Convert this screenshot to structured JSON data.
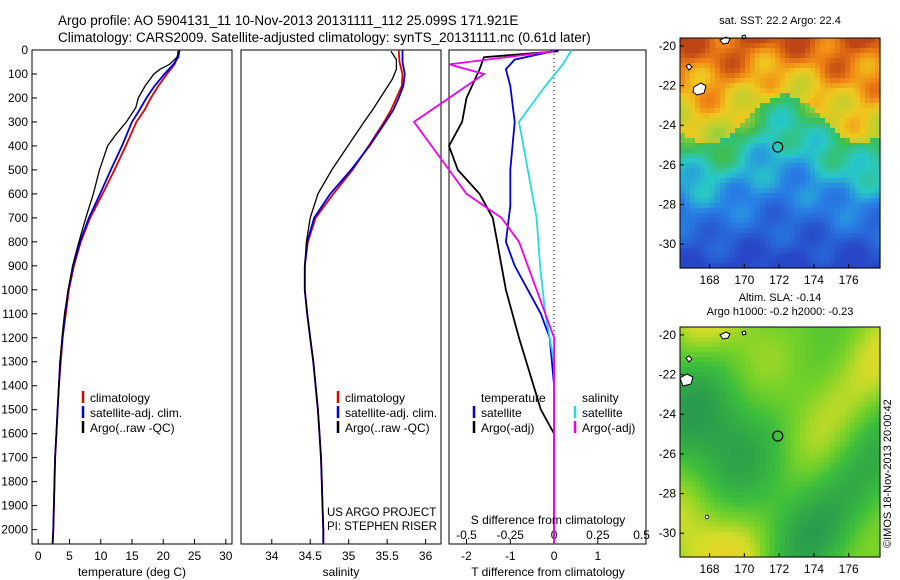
{
  "title_line1": "Argo profile: AO 5904131_11 10-Nov-2013 20131111_112 25.099S 171.921E",
  "title_line2": "Climatology: CARS2009. Satellite-adjusted climatology: synTS_20131111.nc (0.61d later)",
  "colors": {
    "climatology": "#e00000",
    "satellite": "#0000dd",
    "argo": "#000000",
    "salinity_satellite": "#22dddd",
    "salinity_argo": "#ee00ee"
  },
  "chart_data": [
    {
      "type": "line",
      "id": "temperature",
      "xlabel": "temperature (deg C)",
      "ylabel": "",
      "xlim": [
        -1,
        31
      ],
      "ylim": [
        2060,
        0
      ],
      "xticks": [
        0,
        5,
        10,
        15,
        20,
        25,
        30
      ],
      "yticks": [
        0,
        100,
        200,
        300,
        400,
        500,
        600,
        700,
        800,
        900,
        1000,
        1100,
        1200,
        1300,
        1400,
        1500,
        1600,
        1700,
        1800,
        1900,
        2000
      ],
      "legend": [
        "climatology",
        "satellite-adj. clim.",
        "Argo(..raw -QC)"
      ],
      "series": [
        {
          "name": "climatology",
          "points": [
            [
              22.4,
              0
            ],
            [
              22.3,
              30
            ],
            [
              21.8,
              60
            ],
            [
              20.6,
              100
            ],
            [
              19.2,
              150
            ],
            [
              18.0,
              200
            ],
            [
              17.0,
              250
            ],
            [
              15.7,
              300
            ],
            [
              14.0,
              400
            ],
            [
              12.2,
              500
            ],
            [
              10.3,
              600
            ],
            [
              8.3,
              700
            ],
            [
              6.8,
              800
            ],
            [
              5.7,
              900
            ],
            [
              4.9,
              1000
            ],
            [
              4.4,
              1100
            ],
            [
              3.9,
              1200
            ],
            [
              3.6,
              1300
            ],
            [
              3.3,
              1400
            ],
            [
              3.1,
              1500
            ],
            [
              2.9,
              1600
            ],
            [
              2.7,
              1700
            ],
            [
              2.6,
              1800
            ],
            [
              2.5,
              1900
            ],
            [
              2.4,
              2000
            ],
            [
              2.3,
              2060
            ]
          ]
        },
        {
          "name": "satellite-adj. clim.",
          "points": [
            [
              22.6,
              0
            ],
            [
              22.4,
              30
            ],
            [
              21.6,
              60
            ],
            [
              20.2,
              100
            ],
            [
              18.6,
              150
            ],
            [
              17.3,
              200
            ],
            [
              16.2,
              250
            ],
            [
              15.0,
              300
            ],
            [
              13.4,
              400
            ],
            [
              11.6,
              500
            ],
            [
              9.9,
              600
            ],
            [
              8.1,
              700
            ],
            [
              6.7,
              800
            ],
            [
              5.6,
              900
            ],
            [
              4.8,
              1000
            ],
            [
              4.3,
              1100
            ],
            [
              3.9,
              1200
            ],
            [
              3.5,
              1300
            ],
            [
              3.3,
              1400
            ],
            [
              3.1,
              1500
            ],
            [
              2.9,
              1600
            ],
            [
              2.7,
              1700
            ],
            [
              2.6,
              1800
            ],
            [
              2.5,
              1900
            ],
            [
              2.4,
              2000
            ],
            [
              2.3,
              2060
            ]
          ]
        },
        {
          "name": "Argo(..raw -QC)",
          "points": [
            [
              22.5,
              5
            ],
            [
              22.2,
              30
            ],
            [
              21.0,
              60
            ],
            [
              19.5,
              80
            ],
            [
              18.5,
              100
            ],
            [
              17.1,
              150
            ],
            [
              16.0,
              200
            ],
            [
              15.6,
              240
            ],
            [
              14.1,
              300
            ],
            [
              12.5,
              350
            ],
            [
              11.1,
              400
            ],
            [
              9.8,
              500
            ],
            [
              8.8,
              600
            ],
            [
              7.6,
              700
            ],
            [
              6.5,
              800
            ],
            [
              5.5,
              900
            ],
            [
              4.8,
              1000
            ],
            [
              4.2,
              1100
            ],
            [
              3.8,
              1200
            ],
            [
              3.5,
              1300
            ],
            [
              3.3,
              1400
            ],
            [
              3.1,
              1500
            ],
            [
              2.9,
              1600
            ],
            [
              2.7,
              1700
            ],
            [
              2.6,
              1800
            ],
            [
              2.5,
              1900
            ],
            [
              2.4,
              2000
            ],
            [
              2.3,
              2060
            ]
          ]
        }
      ]
    },
    {
      "type": "line",
      "id": "salinity",
      "xlabel": "salinity",
      "ylabel": "",
      "xlim": [
        33.6,
        36.2
      ],
      "ylim": [
        2060,
        0
      ],
      "xticks": [
        34,
        34.5,
        35,
        35.5,
        36
      ],
      "legend": [
        "climatology",
        "satellite-adj. clim.",
        "Argo(..raw -QC)"
      ],
      "series": [
        {
          "name": "climatology",
          "points": [
            [
              35.65,
              0
            ],
            [
              35.66,
              50
            ],
            [
              35.7,
              100
            ],
            [
              35.69,
              150
            ],
            [
              35.62,
              200
            ],
            [
              35.55,
              250
            ],
            [
              35.46,
              300
            ],
            [
              35.26,
              400
            ],
            [
              35.05,
              500
            ],
            [
              34.8,
              600
            ],
            [
              34.57,
              700
            ],
            [
              34.47,
              800
            ],
            [
              34.43,
              900
            ],
            [
              34.43,
              1000
            ],
            [
              34.46,
              1100
            ],
            [
              34.5,
              1200
            ],
            [
              34.54,
              1300
            ],
            [
              34.57,
              1400
            ],
            [
              34.6,
              1500
            ],
            [
              34.62,
              1600
            ],
            [
              34.64,
              1700
            ],
            [
              34.65,
              1800
            ],
            [
              34.66,
              1900
            ],
            [
              34.67,
              2000
            ],
            [
              34.67,
              2060
            ]
          ]
        },
        {
          "name": "satellite-adj. clim.",
          "points": [
            [
              35.7,
              0
            ],
            [
              35.7,
              50
            ],
            [
              35.73,
              100
            ],
            [
              35.71,
              150
            ],
            [
              35.65,
              200
            ],
            [
              35.58,
              250
            ],
            [
              35.48,
              300
            ],
            [
              35.27,
              400
            ],
            [
              35.03,
              500
            ],
            [
              34.76,
              600
            ],
            [
              34.55,
              700
            ],
            [
              34.46,
              800
            ],
            [
              34.43,
              900
            ],
            [
              34.43,
              1000
            ],
            [
              34.46,
              1100
            ],
            [
              34.5,
              1200
            ],
            [
              34.54,
              1300
            ],
            [
              34.57,
              1400
            ],
            [
              34.6,
              1500
            ],
            [
              34.62,
              1600
            ],
            [
              34.64,
              1700
            ],
            [
              34.65,
              1800
            ],
            [
              34.66,
              1900
            ],
            [
              34.67,
              2000
            ],
            [
              34.67,
              2060
            ]
          ]
        },
        {
          "name": "Argo(..raw -QC)",
          "points": [
            [
              35.55,
              5
            ],
            [
              35.62,
              40
            ],
            [
              35.62,
              80
            ],
            [
              35.57,
              120
            ],
            [
              35.49,
              160
            ],
            [
              35.41,
              200
            ],
            [
              35.31,
              250
            ],
            [
              35.2,
              300
            ],
            [
              34.99,
              400
            ],
            [
              34.78,
              500
            ],
            [
              34.6,
              600
            ],
            [
              34.5,
              700
            ],
            [
              34.45,
              800
            ],
            [
              34.43,
              900
            ],
            [
              34.43,
              1000
            ],
            [
              34.46,
              1100
            ],
            [
              34.5,
              1200
            ],
            [
              34.54,
              1300
            ],
            [
              34.57,
              1400
            ],
            [
              34.6,
              1500
            ],
            [
              34.62,
              1600
            ],
            [
              34.64,
              1700
            ],
            [
              34.65,
              1800
            ],
            [
              34.66,
              1900
            ],
            [
              34.67,
              2000
            ],
            [
              34.67,
              2060
            ]
          ]
        }
      ]
    },
    {
      "type": "line",
      "id": "difference",
      "xlabel_bottom": "T difference from climatology",
      "xlabel_top": "S difference from climatology",
      "xlim": [
        -2.4,
        2.1
      ],
      "ylim": [
        2060,
        0
      ],
      "xticks_T": [
        -2,
        -1,
        0,
        1
      ],
      "xticks_S": [
        "-0.5",
        "-0.25",
        "0",
        "0.25",
        "0.5"
      ],
      "xticks_S_values": [
        -0.5,
        -0.25,
        0,
        0.25,
        0.5
      ],
      "legend_temperature_title": "temperature",
      "legend_salinity_title": "salinity",
      "legend_temperature": [
        "satellite",
        "Argo(-adj)"
      ],
      "legend_salinity": [
        "satellite",
        "Argo(-adj)"
      ],
      "series": [
        {
          "name": "T satellite",
          "points": [
            [
              0.1,
              0
            ],
            [
              -0.9,
              40
            ],
            [
              -1.1,
              80
            ],
            [
              -1.0,
              150
            ],
            [
              -0.9,
              300
            ],
            [
              -1.0,
              500
            ],
            [
              -1.0,
              650
            ],
            [
              -1.1,
              800
            ],
            [
              -0.9,
              900
            ],
            [
              -0.6,
              1000
            ],
            [
              -0.3,
              1100
            ],
            [
              -0.1,
              1200
            ],
            [
              0,
              1400
            ],
            [
              0,
              2060
            ]
          ]
        },
        {
          "name": "T Argo(-adj)",
          "points": [
            [
              0.1,
              5
            ],
            [
              -1.6,
              30
            ],
            [
              -1.7,
              80
            ],
            [
              -2.0,
              200
            ],
            [
              -2.1,
              300
            ],
            [
              -2.4,
              400
            ],
            [
              -2.2,
              500
            ],
            [
              -1.7,
              600
            ],
            [
              -1.4,
              700
            ],
            [
              -1.3,
              800
            ],
            [
              -1.2,
              900
            ],
            [
              -1.1,
              1000
            ],
            [
              -0.8,
              1200
            ],
            [
              -0.3,
              1500
            ],
            [
              0,
              1600
            ],
            [
              0,
              2060
            ]
          ]
        },
        {
          "name": "S satellite",
          "points": [
            [
              0.1,
              0
            ],
            [
              0.05,
              60
            ],
            [
              -0.05,
              150
            ],
            [
              -0.2,
              300
            ],
            [
              -0.15,
              500
            ],
            [
              -0.1,
              700
            ],
            [
              -0.08,
              900
            ],
            [
              -0.05,
              1100
            ],
            [
              0,
              1300
            ],
            [
              0,
              2060
            ]
          ]
        },
        {
          "name": "S Argo(-adj)",
          "points": [
            [
              0.0,
              5
            ],
            [
              -0.6,
              60
            ],
            [
              -0.4,
              100
            ],
            [
              -0.6,
              200
            ],
            [
              -0.8,
              300
            ],
            [
              -0.7,
              400
            ],
            [
              -0.5,
              600
            ],
            [
              -0.3,
              700
            ],
            [
              -0.2,
              800
            ],
            [
              -0.1,
              1000
            ],
            [
              0,
              1200
            ],
            [
              0,
              2060
            ]
          ]
        }
      ]
    },
    {
      "type": "heatmap",
      "id": "sst-map",
      "title": "sat. SST: 22.2  Argo: 22.4",
      "xticks": [
        168,
        170,
        172,
        174,
        176
      ],
      "yticks": [
        -20,
        -22,
        -24,
        -26,
        -28,
        -30
      ],
      "xlim": [
        166.3,
        177.8
      ],
      "ylim": [
        -31.2,
        -19.6
      ],
      "argo_location": [
        171.92,
        -25.1
      ]
    },
    {
      "type": "heatmap",
      "id": "sla-map",
      "title_line1": "Altim. SLA: -0.14",
      "title_line2": "Argo h1000: -0.2 h2000: -0.23",
      "xticks": [
        168,
        170,
        172,
        174,
        176
      ],
      "yticks": [
        -20,
        -22,
        -24,
        -26,
        -28,
        -30
      ],
      "xlim": [
        166.3,
        177.8
      ],
      "ylim": [
        -31.2,
        -19.6
      ],
      "argo_location": [
        171.92,
        -25.1
      ]
    }
  ],
  "credits": {
    "line1": "US ARGO PROJECT",
    "line2": "PI: STEPHEN RISER"
  },
  "stamp": "©IMOS 18-Nov-2013 20:00:42"
}
